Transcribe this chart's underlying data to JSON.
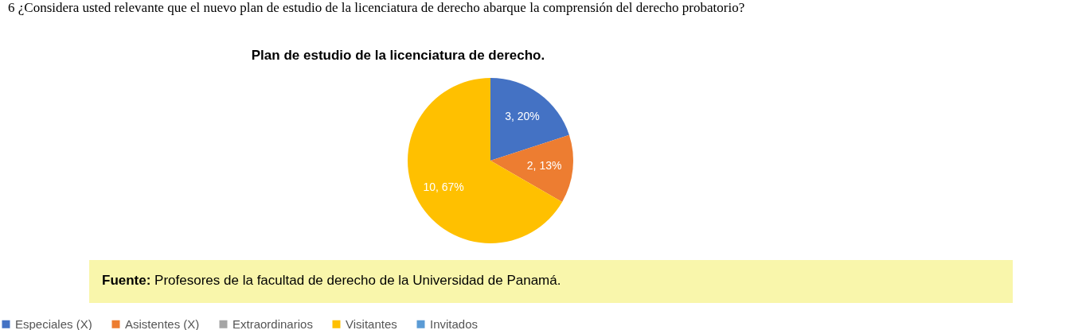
{
  "chart_data": {
    "type": "pie",
    "title": "Plan de estudio de la licenciatura de derecho.",
    "categories": [
      "Especiales (X)",
      "Asistentes (X)",
      "Extraordinarios",
      "Visitantes",
      "Invitados"
    ],
    "values": [
      3,
      2,
      0,
      10,
      0
    ],
    "colors": [
      "#4472c4",
      "#ed7d31",
      "#a5a5a5",
      "#ffc000",
      "#5b9bd5"
    ],
    "value_labels": [
      "3, 20%",
      "2, 13%",
      null,
      "10, 67%",
      null
    ],
    "legend": "bottom",
    "annotations": [
      "6 ¿Considera usted relevante que el nuevo plan de estudio de la licenciatura de derecho abarque la comprensión del derecho probatorio?",
      "Fuente: Profesores de la facultad de derecho de la Universidad de Panamá."
    ]
  }
}
